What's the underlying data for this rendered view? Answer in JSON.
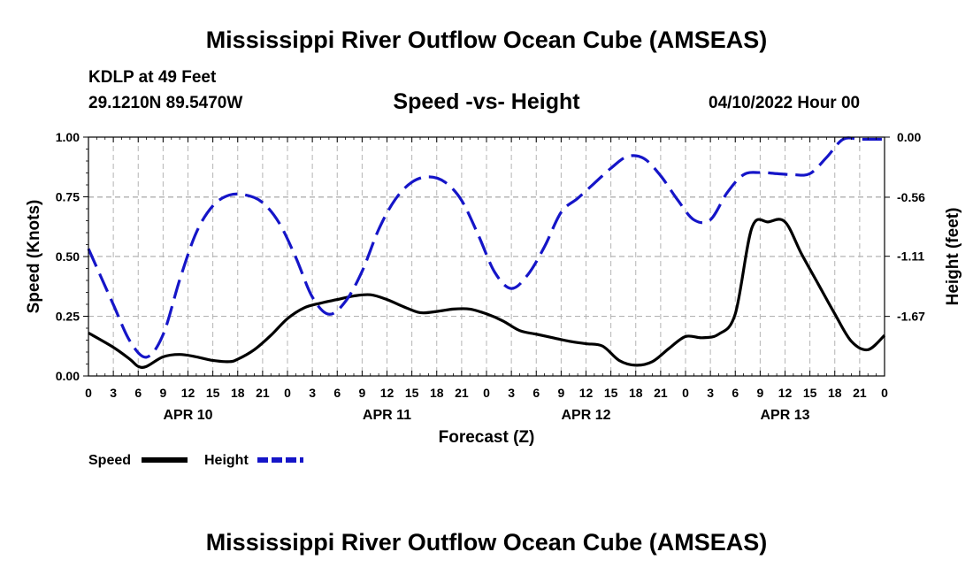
{
  "header": {
    "title": "Mississippi River Outflow Ocean Cube (AMSEAS)",
    "station": "KDLP at 49 Feet",
    "coords": "29.1210N  89.5470W",
    "subtitle": "Speed -vs- Height",
    "datetime": "04/10/2022 Hour 00"
  },
  "footer": {
    "title": "Mississippi River Outflow Ocean Cube (AMSEAS)"
  },
  "colors": {
    "speed": "#000000",
    "height": "#1515c8",
    "grid": "#b4b4b4"
  },
  "chart_data": {
    "type": "line",
    "title": "Speed -vs- Height",
    "xlabel": "Forecast (Z)",
    "ylabel": "Speed (Knots)",
    "y2label": "Height (feet)",
    "xlim": [
      0,
      96
    ],
    "ylim": [
      0,
      1
    ],
    "y2lim": [
      -2.225,
      0
    ],
    "x_ticks": [
      0,
      3,
      6,
      9,
      12,
      15,
      18,
      21,
      24,
      27,
      30,
      33,
      36,
      39,
      42,
      45,
      48,
      51,
      54,
      57,
      60,
      63,
      66,
      69,
      72,
      75,
      78,
      81,
      84,
      87,
      90,
      93,
      96
    ],
    "x_tick_labels": [
      "0",
      "3",
      "6",
      "9",
      "12",
      "15",
      "18",
      "21",
      "0",
      "3",
      "6",
      "9",
      "12",
      "15",
      "18",
      "21",
      "0",
      "3",
      "6",
      "9",
      "12",
      "15",
      "18",
      "21",
      "0",
      "3",
      "6",
      "9",
      "12",
      "15",
      "18",
      "21",
      "0"
    ],
    "day_labels": [
      {
        "x": 12,
        "label": "APR 10"
      },
      {
        "x": 36,
        "label": "APR 11"
      },
      {
        "x": 60,
        "label": "APR 12"
      },
      {
        "x": 84,
        "label": "APR 13"
      }
    ],
    "y_ticks": [
      0,
      0.25,
      0.5,
      0.75,
      1.0
    ],
    "y_tick_labels": [
      "0.00",
      "0.25",
      "0.50",
      "0.75",
      "1.00"
    ],
    "y2_ticks": [
      0,
      -0.56,
      -1.11,
      -1.67
    ],
    "y2_tick_labels": [
      "0.00",
      "-0.56",
      "-1.11",
      "-1.67"
    ],
    "legend": {
      "position": "bottom-left",
      "entries": [
        "Speed",
        "Height"
      ]
    },
    "series": [
      {
        "name": "Speed",
        "axis": "left",
        "style": "solid",
        "x": [
          0,
          3,
          5,
          6,
          7,
          9,
          11,
          13,
          15,
          17,
          18,
          20,
          22,
          24,
          26,
          28,
          30,
          32,
          34,
          36,
          38,
          40,
          42,
          44,
          46,
          48,
          50,
          52,
          54,
          56,
          58,
          60,
          62,
          64,
          66,
          68,
          70,
          72,
          74,
          76,
          78,
          80,
          82,
          84,
          86,
          88,
          90,
          92,
          94,
          96
        ],
        "values": [
          0.18,
          0.12,
          0.07,
          0.04,
          0.04,
          0.08,
          0.09,
          0.08,
          0.065,
          0.06,
          0.07,
          0.11,
          0.17,
          0.24,
          0.285,
          0.305,
          0.32,
          0.335,
          0.34,
          0.32,
          0.29,
          0.265,
          0.27,
          0.28,
          0.28,
          0.26,
          0.23,
          0.19,
          0.175,
          0.16,
          0.145,
          0.135,
          0.125,
          0.065,
          0.045,
          0.06,
          0.115,
          0.165,
          0.16,
          0.175,
          0.26,
          0.62,
          0.645,
          0.645,
          0.51,
          0.385,
          0.26,
          0.145,
          0.11,
          0.17
        ]
      },
      {
        "name": "Height",
        "axis": "right",
        "style": "dashed",
        "x": [
          0,
          3,
          5,
          7,
          9,
          11,
          13,
          15,
          17,
          19,
          21,
          23,
          25,
          27,
          29,
          31,
          33,
          35,
          37,
          39,
          41,
          43,
          45,
          47,
          49,
          51,
          53,
          55,
          57,
          59,
          61,
          63,
          65,
          67,
          69,
          71,
          73,
          75,
          77,
          79,
          81,
          83,
          85,
          87,
          89,
          91,
          93,
          95,
          96
        ],
        "values": [
          -1.04,
          -1.56,
          -1.9,
          -2.05,
          -1.84,
          -1.33,
          -0.89,
          -0.64,
          -0.54,
          -0.54,
          -0.61,
          -0.8,
          -1.12,
          -1.49,
          -1.65,
          -1.53,
          -1.25,
          -0.86,
          -0.58,
          -0.42,
          -0.37,
          -0.42,
          -0.59,
          -0.91,
          -1.26,
          -1.41,
          -1.28,
          -1.02,
          -0.7,
          -0.57,
          -0.43,
          -0.29,
          -0.18,
          -0.2,
          -0.36,
          -0.58,
          -0.77,
          -0.77,
          -0.52,
          -0.35,
          -0.33,
          -0.34,
          -0.35,
          -0.34,
          -0.19,
          -0.02,
          -0.02,
          -0.02,
          -0.02
        ]
      }
    ]
  }
}
